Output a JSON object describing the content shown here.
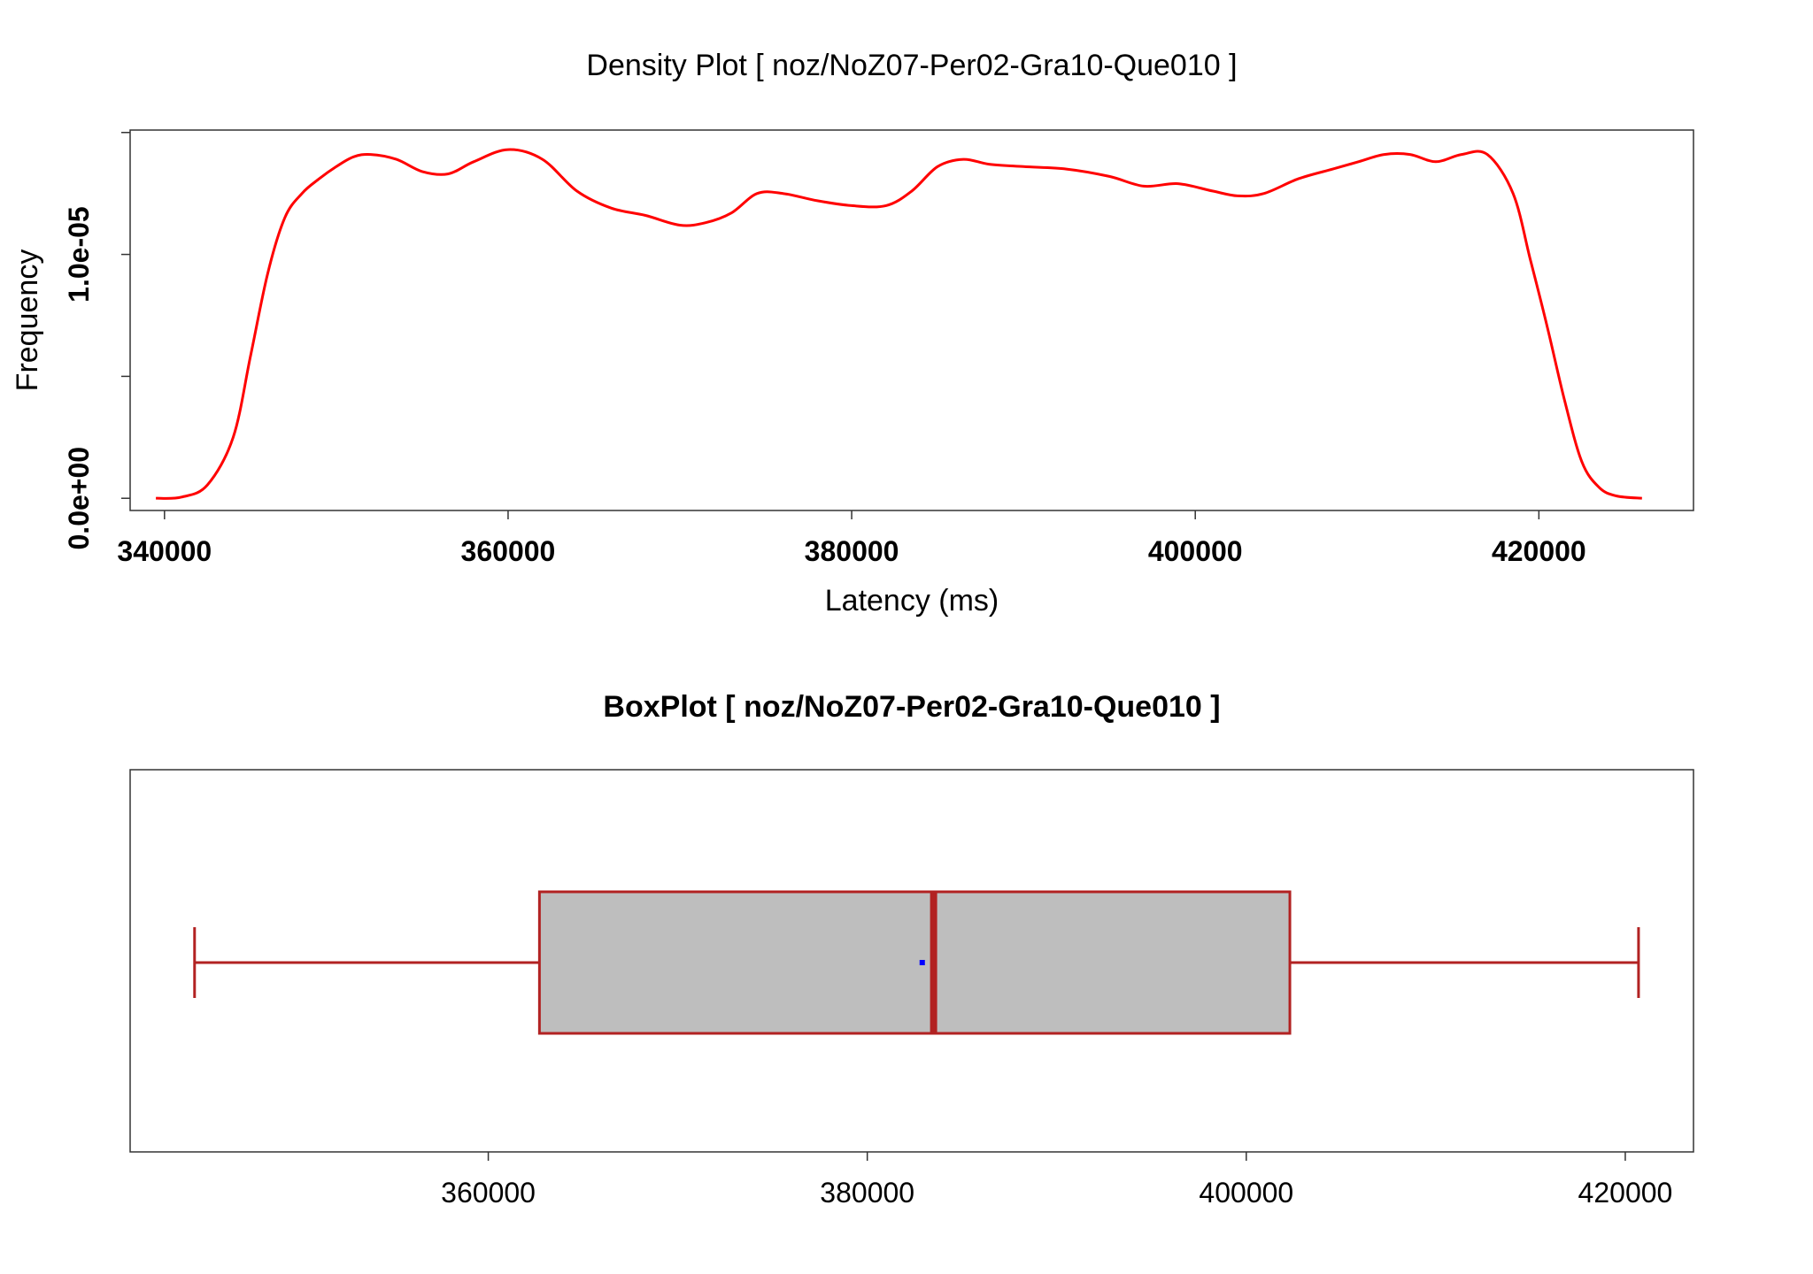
{
  "chart_data": [
    {
      "type": "line",
      "title": "Density Plot [ noz/NoZ07-Per02-Gra10-Que010 ]",
      "xlabel": "Latency (ms)",
      "ylabel": "Frequency",
      "xlim": [
        338000,
        429000
      ],
      "ylim": [
        -5e-07,
        1.51e-05
      ],
      "x_ticks": [
        {
          "value": 340000,
          "label": "340000"
        },
        {
          "value": 360000,
          "label": "360000"
        },
        {
          "value": 380000,
          "label": "380000"
        },
        {
          "value": 400000,
          "label": "400000"
        },
        {
          "value": 420000,
          "label": "420000"
        }
      ],
      "y_ticks": [
        {
          "value": 0,
          "label": "0.0e+00"
        },
        {
          "value": 5e-06,
          "label": ""
        },
        {
          "value": 1e-05,
          "label": "1.0e-05"
        },
        {
          "value": 1.5e-05,
          "label": ""
        }
      ],
      "grid": false,
      "line_color": "#ff0000",
      "series": [
        {
          "x": [
            339500,
            341000,
            342500,
            344000,
            345000,
            346000,
            347000,
            348000,
            349000,
            350000,
            351000,
            352000,
            353500,
            355000,
            356500,
            358000,
            360000,
            362000,
            364000,
            366000,
            368000,
            370000,
            371500,
            373000,
            374500,
            376000,
            378000,
            380000,
            382000,
            383500,
            385000,
            386500,
            388000,
            390000,
            392500,
            395000,
            397000,
            399000,
            401000,
            402500,
            404000,
            406000,
            408000,
            409500,
            411000,
            412500,
            414000,
            415500,
            417000,
            418500,
            419500,
            420500,
            421500,
            422500,
            423500,
            424500,
            426000
          ],
          "y": [
            0.0,
            5e-08,
            5.5e-07,
            2.5e-06,
            5.8e-06,
            9.2e-06,
            1.15e-05,
            1.25e-05,
            1.31e-05,
            1.36e-05,
            1.4e-05,
            1.41e-05,
            1.39e-05,
            1.34e-05,
            1.33e-05,
            1.38e-05,
            1.43e-05,
            1.39e-05,
            1.26e-05,
            1.19e-05,
            1.16e-05,
            1.12e-05,
            1.13e-05,
            1.17e-05,
            1.25e-05,
            1.25e-05,
            1.22e-05,
            1.2e-05,
            1.2e-05,
            1.26e-05,
            1.36e-05,
            1.39e-05,
            1.37e-05,
            1.36e-05,
            1.35e-05,
            1.32e-05,
            1.28e-05,
            1.29e-05,
            1.26e-05,
            1.24e-05,
            1.25e-05,
            1.31e-05,
            1.35e-05,
            1.38e-05,
            1.41e-05,
            1.41e-05,
            1.38e-05,
            1.41e-05,
            1.41e-05,
            1.25e-05,
            9.8e-06,
            7e-06,
            4e-06,
            1.5e-06,
            4.5e-07,
            1e-07,
            0.0
          ]
        }
      ]
    },
    {
      "type": "box",
      "title": "BoxPlot [ noz/NoZ07-Per02-Gra10-Que010 ]",
      "xlim": [
        341100,
        423600
      ],
      "x_ticks": [
        {
          "value": 360000,
          "label": "360000"
        },
        {
          "value": 380000,
          "label": "380000"
        },
        {
          "value": 400000,
          "label": "400000"
        },
        {
          "value": 420000,
          "label": "420000"
        }
      ],
      "grid": false,
      "whisker_low": 344500,
      "q1": 362700,
      "median": 383500,
      "mean": 382900,
      "q3": 402300,
      "whisker_high": 420700,
      "box_fill": "#bebebe",
      "box_stroke": "#b22222",
      "mean_color": "#0000ff"
    }
  ]
}
